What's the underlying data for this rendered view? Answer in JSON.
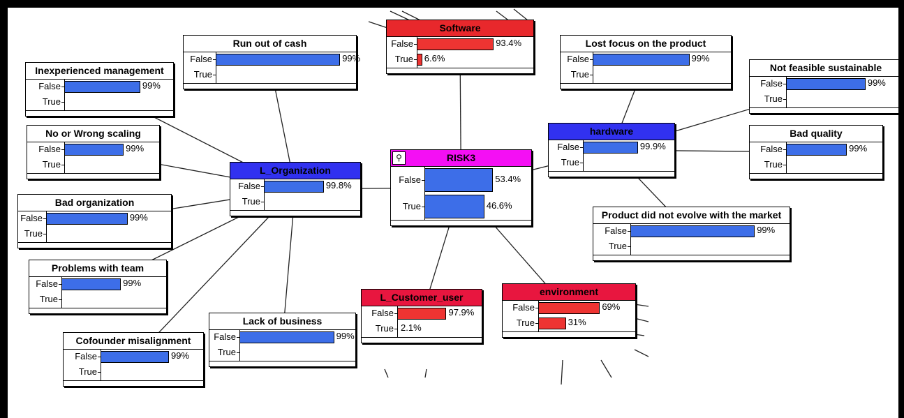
{
  "nodes": [
    {
      "id": "run_out_of_cash",
      "title": "Run out of cash",
      "header": "plain",
      "barcolor": "blue",
      "states": [
        {
          "label": "False",
          "value": 99,
          "pct": "99%"
        },
        {
          "label": "True",
          "value": 1,
          "pct": ""
        }
      ]
    },
    {
      "id": "software",
      "title": "Software",
      "header": "red",
      "barcolor": "red",
      "states": [
        {
          "label": "False",
          "value": 93.4,
          "pct": "93.4%"
        },
        {
          "label": "True",
          "value": 6.6,
          "pct": "6.6%"
        }
      ]
    },
    {
      "id": "lost_focus",
      "title": "Lost focus on the product",
      "header": "plain",
      "barcolor": "blue",
      "states": [
        {
          "label": "False",
          "value": 99,
          "pct": "99%"
        },
        {
          "label": "True",
          "value": 1,
          "pct": ""
        }
      ]
    },
    {
      "id": "not_feasible",
      "title": "Not feasible sustainable",
      "header": "plain",
      "barcolor": "blue",
      "states": [
        {
          "label": "False",
          "value": 99,
          "pct": "99%"
        },
        {
          "label": "True",
          "value": 1,
          "pct": ""
        }
      ]
    },
    {
      "id": "inexperienced",
      "title": "Inexperienced management",
      "header": "plain",
      "barcolor": "blue",
      "states": [
        {
          "label": "False",
          "value": 99,
          "pct": "99%"
        },
        {
          "label": "True",
          "value": 1,
          "pct": ""
        }
      ]
    },
    {
      "id": "no_scaling",
      "title": "No or Wrong scaling",
      "header": "plain",
      "barcolor": "blue",
      "states": [
        {
          "label": "False",
          "value": 99,
          "pct": "99%"
        },
        {
          "label": "True",
          "value": 1,
          "pct": ""
        }
      ]
    },
    {
      "id": "l_organization",
      "title": "L_Organization",
      "header": "blue",
      "barcolor": "blue",
      "states": [
        {
          "label": "False",
          "value": 99.8,
          "pct": "99.8%"
        },
        {
          "label": "True",
          "value": 0.2,
          "pct": ""
        }
      ]
    },
    {
      "id": "risk3",
      "title": "RISK3",
      "header": "magenta",
      "barcolor": "blue",
      "big": true,
      "states": [
        {
          "label": "False",
          "value": 53.4,
          "pct": "53.4%"
        },
        {
          "label": "True",
          "value": 46.6,
          "pct": "46.6%"
        }
      ]
    },
    {
      "id": "hardware",
      "title": "hardware",
      "header": "blue",
      "barcolor": "blue",
      "states": [
        {
          "label": "False",
          "value": 99.9,
          "pct": "99.9%"
        },
        {
          "label": "True",
          "value": 0.1,
          "pct": ""
        }
      ]
    },
    {
      "id": "bad_quality",
      "title": "Bad quality",
      "header": "plain",
      "barcolor": "blue",
      "states": [
        {
          "label": "False",
          "value": 99,
          "pct": "99%"
        },
        {
          "label": "True",
          "value": 1,
          "pct": ""
        }
      ]
    },
    {
      "id": "bad_org",
      "title": "Bad organization",
      "header": "plain",
      "barcolor": "blue",
      "states": [
        {
          "label": "False",
          "value": 99,
          "pct": "99%"
        },
        {
          "label": "True",
          "value": 1,
          "pct": ""
        }
      ]
    },
    {
      "id": "product_evolve",
      "title": "Product did not evolve with the market",
      "header": "plain",
      "barcolor": "blue",
      "states": [
        {
          "label": "False",
          "value": 99,
          "pct": "99%"
        },
        {
          "label": "True",
          "value": 1,
          "pct": ""
        }
      ]
    },
    {
      "id": "problems_team",
      "title": "Problems with team",
      "header": "plain",
      "barcolor": "blue",
      "states": [
        {
          "label": "False",
          "value": 99,
          "pct": "99%"
        },
        {
          "label": "True",
          "value": 1,
          "pct": ""
        }
      ]
    },
    {
      "id": "l_customer",
      "title": "L_Customer_user",
      "header": "crimson",
      "barcolor": "red",
      "states": [
        {
          "label": "False",
          "value": 97.9,
          "pct": "97.9%"
        },
        {
          "label": "True",
          "value": 2.1,
          "pct": "2.1%"
        }
      ]
    },
    {
      "id": "environment",
      "title": "environment",
      "header": "crimson",
      "barcolor": "red",
      "states": [
        {
          "label": "False",
          "value": 69,
          "pct": "69%"
        },
        {
          "label": "True",
          "value": 31,
          "pct": "31%"
        }
      ]
    },
    {
      "id": "lack_business",
      "title": "Lack of business",
      "header": "plain",
      "barcolor": "blue",
      "states": [
        {
          "label": "False",
          "value": 99,
          "pct": "99%"
        },
        {
          "label": "True",
          "value": 1,
          "pct": ""
        }
      ]
    },
    {
      "id": "cofounder",
      "title": "Cofounder misalignment",
      "header": "plain",
      "barcolor": "blue",
      "states": [
        {
          "label": "False",
          "value": 99,
          "pct": "99%"
        },
        {
          "label": "True",
          "value": 1,
          "pct": ""
        }
      ]
    }
  ],
  "edges": [
    [
      "inexperienced",
      "l_organization"
    ],
    [
      "no_scaling",
      "l_organization"
    ],
    [
      "bad_org",
      "l_organization"
    ],
    [
      "problems_team",
      "l_organization"
    ],
    [
      "cofounder",
      "l_organization"
    ],
    [
      "lack_business",
      "l_organization"
    ],
    [
      "run_out_of_cash",
      "l_organization"
    ],
    [
      "l_organization",
      "risk3"
    ],
    [
      "software",
      "risk3"
    ],
    [
      "hardware",
      "risk3"
    ],
    [
      "risk3",
      "l_customer"
    ],
    [
      "risk3",
      "environment"
    ],
    [
      "lost_focus",
      "hardware"
    ],
    [
      "not_feasible",
      "hardware"
    ],
    [
      "bad_quality",
      "hardware"
    ],
    [
      "product_evolve",
      "hardware"
    ]
  ],
  "colors": {
    "blue_bar": "#3d6ee8",
    "red_bar": "#ee3432",
    "blue_header": "#3131f0",
    "red_header": "#e8282c",
    "crimson_header": "#e8163f",
    "magenta_header": "#f40ff4"
  },
  "icons": {
    "risk3": "node-pin-icon"
  }
}
